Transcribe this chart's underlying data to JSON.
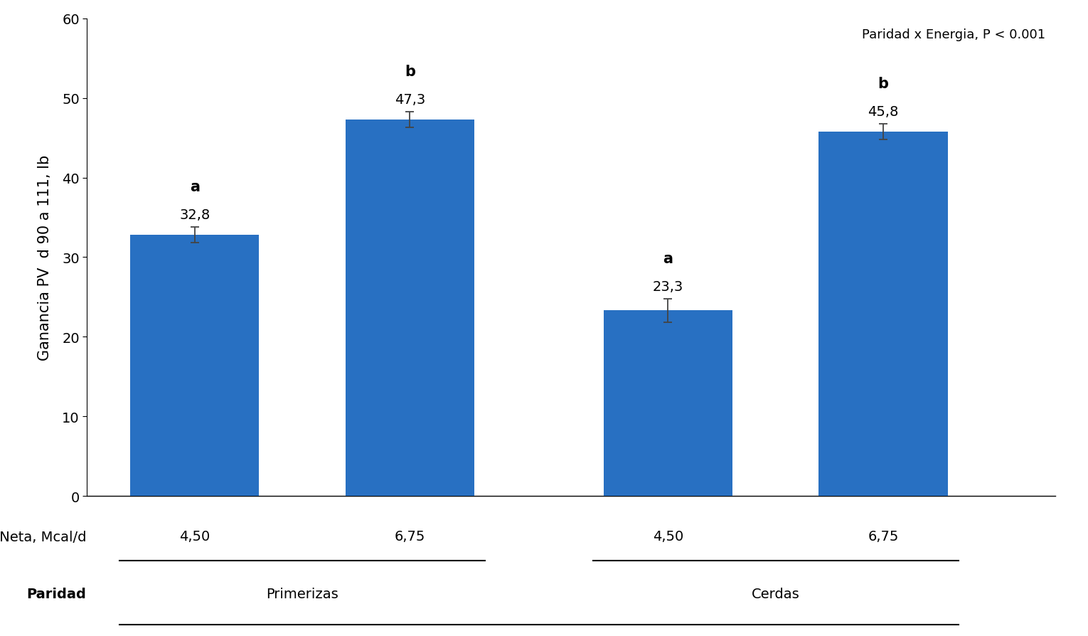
{
  "values": [
    32.8,
    47.3,
    23.3,
    45.8
  ],
  "errors": [
    1.0,
    1.0,
    1.5,
    1.0
  ],
  "bar_color": "#2870C2",
  "bar_width": 0.6,
  "bar_positions": [
    1.0,
    2.0,
    3.2,
    4.2
  ],
  "ylabel": "Ganancia PV  d 90 a 111, lb",
  "ylim": [
    0,
    60
  ],
  "yticks": [
    0,
    10,
    20,
    30,
    40,
    50,
    60
  ],
  "xlabel_values": [
    "4,50",
    "6,75",
    "4,50",
    "6,75"
  ],
  "xlabel_label": "Energía Neta, Mcal/d",
  "parity_label": "Paridad",
  "parity_groups": [
    "Primerizas",
    "Cerdas"
  ],
  "letter_labels": [
    "a",
    "b",
    "a",
    "b"
  ],
  "value_labels": [
    "32,8",
    "47,3",
    "23,3",
    "45,8"
  ],
  "annotation": "Paridad x Energia, P < 0.001",
  "background_color": "#ffffff"
}
